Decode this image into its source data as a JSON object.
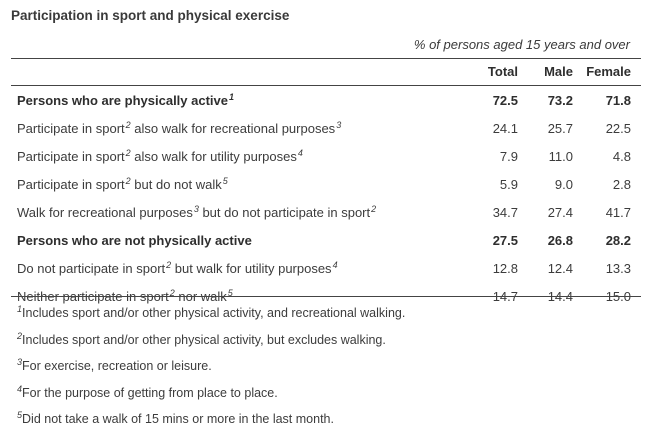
{
  "title": "Participation in sport and physical exercise",
  "subtitle": "% of persons aged 15 years and over",
  "columns": [
    "Total",
    "Male",
    "Female"
  ],
  "rows": [
    {
      "pre": "Persons who are physically active",
      "sup1": "1",
      "post": "",
      "sup2": "",
      "tail": "",
      "total": "72.5",
      "male": "73.2",
      "female": "71.8",
      "bold": true
    },
    {
      "pre": "Participate in sport",
      "sup1": "2",
      "post": " also walk for recreational purposes",
      "sup2": "3",
      "tail": "",
      "total": "24.1",
      "male": "25.7",
      "female": "22.5",
      "bold": false
    },
    {
      "pre": "Participate in sport",
      "sup1": "2",
      "post": " also walk for utility purposes",
      "sup2": "4",
      "tail": "",
      "total": "7.9",
      "male": "11.0",
      "female": "4.8",
      "bold": false
    },
    {
      "pre": "Participate in sport",
      "sup1": "2",
      "post": " but do not walk",
      "sup2": "5",
      "tail": "",
      "total": "5.9",
      "male": "9.0",
      "female": "2.8",
      "bold": false
    },
    {
      "pre": "Walk for recreational purposes",
      "sup1": "3",
      "post": " but do not participate in sport",
      "sup2": "2",
      "tail": "",
      "total": "34.7",
      "male": "27.4",
      "female": "41.7",
      "bold": false
    },
    {
      "pre": "Persons who are not physically active",
      "sup1": "",
      "post": "",
      "sup2": "",
      "tail": "",
      "total": "27.5",
      "male": "26.8",
      "female": "28.2",
      "bold": true
    },
    {
      "pre": "Do not participate in sport",
      "sup1": "2",
      "post": " but walk for utility purposes",
      "sup2": "4",
      "tail": "",
      "total": "12.8",
      "male": "12.4",
      "female": "13.3",
      "bold": false
    },
    {
      "pre": "Neither participate in sport",
      "sup1": "2",
      "post": " nor walk",
      "sup2": "5",
      "tail": "",
      "total": "14.7",
      "male": "14.4",
      "female": "15.0",
      "bold": false
    }
  ],
  "footnotes": [
    {
      "num": "1",
      "text": "Includes sport and/or other physical activity, and recreational walking."
    },
    {
      "num": "2",
      "text": "Includes sport and/or other physical activity, but excludes walking."
    },
    {
      "num": "3",
      "text": "For exercise, recreation or leisure."
    },
    {
      "num": "4",
      "text": "For the purpose of getting from place to place."
    },
    {
      "num": "5",
      "text": "Did not take a walk of 15 mins or more in the last month."
    }
  ]
}
